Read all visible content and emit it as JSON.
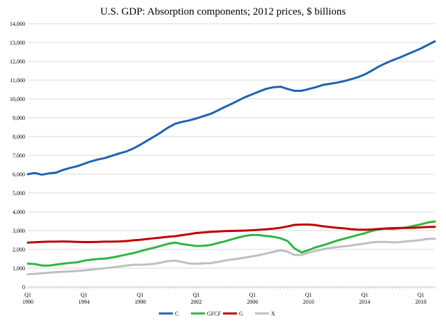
{
  "chart_data": {
    "type": "line",
    "title": "U.S. GDP: Absorption components; 2012 prices, $ billions",
    "xlabel": "",
    "ylabel": "",
    "ylim": [
      0,
      14000
    ],
    "yticks": [
      0,
      1000,
      2000,
      3000,
      4000,
      5000,
      6000,
      7000,
      8000,
      9000,
      10000,
      11000,
      12000,
      13000,
      14000
    ],
    "ytick_labels": [
      "0",
      "1,000",
      "2,000",
      "3,000",
      "4,000",
      "5,000",
      "6,000",
      "7,000",
      "8,000",
      "9,000",
      "10,000",
      "11,000",
      "12,000",
      "13,000",
      "14,000"
    ],
    "xlim": [
      1990,
      2019.0
    ],
    "xticks": [
      {
        "value": 1990,
        "quarter": "Q1",
        "year": "1990"
      },
      {
        "value": 1994,
        "quarter": "Q1",
        "year": "1994"
      },
      {
        "value": 1998,
        "quarter": "Q1",
        "year": "1998"
      },
      {
        "value": 2002,
        "quarter": "Q1",
        "year": "2002"
      },
      {
        "value": 2006,
        "quarter": "Q1",
        "year": "2006"
      },
      {
        "value": 2010,
        "quarter": "Q1",
        "year": "2010"
      },
      {
        "value": 2014,
        "quarter": "Q1",
        "year": "2014"
      },
      {
        "value": 2018,
        "quarter": "Q1",
        "year": "2018"
      }
    ],
    "legend_position": "bottom",
    "series": [
      {
        "name": "C",
        "color": "#1f62b4",
        "points": [
          [
            1990,
            6000
          ],
          [
            1990.5,
            6060
          ],
          [
            1991,
            5970
          ],
          [
            1991.5,
            6040
          ],
          [
            1992,
            6080
          ],
          [
            1992.5,
            6220
          ],
          [
            1993,
            6330
          ],
          [
            1993.5,
            6420
          ],
          [
            1994,
            6550
          ],
          [
            1994.5,
            6680
          ],
          [
            1995,
            6780
          ],
          [
            1995.5,
            6860
          ],
          [
            1996,
            6980
          ],
          [
            1996.5,
            7100
          ],
          [
            1997,
            7200
          ],
          [
            1997.5,
            7360
          ],
          [
            1998,
            7560
          ],
          [
            1998.5,
            7780
          ],
          [
            1999,
            8000
          ],
          [
            1999.5,
            8230
          ],
          [
            2000,
            8480
          ],
          [
            2000.5,
            8680
          ],
          [
            2001,
            8780
          ],
          [
            2001.5,
            8860
          ],
          [
            2002,
            8960
          ],
          [
            2002.5,
            9080
          ],
          [
            2003,
            9200
          ],
          [
            2003.5,
            9370
          ],
          [
            2004,
            9560
          ],
          [
            2004.5,
            9730
          ],
          [
            2005,
            9920
          ],
          [
            2005.5,
            10100
          ],
          [
            2006,
            10250
          ],
          [
            2006.5,
            10400
          ],
          [
            2007,
            10540
          ],
          [
            2007.5,
            10620
          ],
          [
            2008,
            10650
          ],
          [
            2008.5,
            10530
          ],
          [
            2009,
            10430
          ],
          [
            2009.5,
            10430
          ],
          [
            2010,
            10520
          ],
          [
            2010.5,
            10620
          ],
          [
            2011,
            10740
          ],
          [
            2011.5,
            10800
          ],
          [
            2012,
            10860
          ],
          [
            2012.5,
            10940
          ],
          [
            2013,
            11040
          ],
          [
            2013.5,
            11150
          ],
          [
            2014,
            11300
          ],
          [
            2014.5,
            11500
          ],
          [
            2015,
            11720
          ],
          [
            2015.5,
            11900
          ],
          [
            2016,
            12060
          ],
          [
            2016.5,
            12200
          ],
          [
            2017,
            12360
          ],
          [
            2017.5,
            12520
          ],
          [
            2018,
            12680
          ],
          [
            2018.5,
            12870
          ],
          [
            2019,
            13060
          ]
        ]
      },
      {
        "name": "GFCF",
        "color": "#2fb543",
        "points": [
          [
            1990,
            1240
          ],
          [
            1990.5,
            1220
          ],
          [
            1991,
            1140
          ],
          [
            1991.5,
            1140
          ],
          [
            1992,
            1190
          ],
          [
            1992.5,
            1240
          ],
          [
            1993,
            1280
          ],
          [
            1993.5,
            1310
          ],
          [
            1994,
            1400
          ],
          [
            1994.5,
            1450
          ],
          [
            1995,
            1490
          ],
          [
            1995.5,
            1510
          ],
          [
            1996,
            1570
          ],
          [
            1996.5,
            1640
          ],
          [
            1997,
            1720
          ],
          [
            1997.5,
            1800
          ],
          [
            1998,
            1900
          ],
          [
            1998.5,
            2000
          ],
          [
            1999,
            2090
          ],
          [
            1999.5,
            2190
          ],
          [
            2000,
            2300
          ],
          [
            2000.5,
            2360
          ],
          [
            2001,
            2280
          ],
          [
            2001.5,
            2230
          ],
          [
            2002,
            2180
          ],
          [
            2002.5,
            2190
          ],
          [
            2003,
            2230
          ],
          [
            2003.5,
            2330
          ],
          [
            2004,
            2420
          ],
          [
            2004.5,
            2530
          ],
          [
            2005,
            2630
          ],
          [
            2005.5,
            2720
          ],
          [
            2006,
            2770
          ],
          [
            2006.5,
            2760
          ],
          [
            2007,
            2710
          ],
          [
            2007.5,
            2670
          ],
          [
            2008,
            2590
          ],
          [
            2008.5,
            2450
          ],
          [
            2009,
            2050
          ],
          [
            2009.5,
            1840
          ],
          [
            2010,
            1960
          ],
          [
            2010.5,
            2110
          ],
          [
            2011,
            2210
          ],
          [
            2011.5,
            2330
          ],
          [
            2012,
            2460
          ],
          [
            2012.5,
            2560
          ],
          [
            2013,
            2660
          ],
          [
            2013.5,
            2760
          ],
          [
            2014,
            2860
          ],
          [
            2014.5,
            2980
          ],
          [
            2015,
            3060
          ],
          [
            2015.5,
            3100
          ],
          [
            2016,
            3080
          ],
          [
            2016.5,
            3120
          ],
          [
            2017,
            3170
          ],
          [
            2017.5,
            3250
          ],
          [
            2018,
            3330
          ],
          [
            2018.5,
            3430
          ],
          [
            2019,
            3480
          ]
        ]
      },
      {
        "name": "G",
        "color": "#c00000",
        "points": [
          [
            1990,
            2360
          ],
          [
            1990.5,
            2380
          ],
          [
            1991,
            2400
          ],
          [
            1991.5,
            2410
          ],
          [
            1992,
            2410
          ],
          [
            1992.5,
            2420
          ],
          [
            1993,
            2410
          ],
          [
            1993.5,
            2400
          ],
          [
            1994,
            2390
          ],
          [
            1994.5,
            2390
          ],
          [
            1995,
            2400
          ],
          [
            1995.5,
            2410
          ],
          [
            1996,
            2410
          ],
          [
            1996.5,
            2420
          ],
          [
            1997,
            2440
          ],
          [
            1997.5,
            2480
          ],
          [
            1998,
            2510
          ],
          [
            1998.5,
            2550
          ],
          [
            1999,
            2590
          ],
          [
            1999.5,
            2630
          ],
          [
            2000,
            2670
          ],
          [
            2000.5,
            2700
          ],
          [
            2001,
            2760
          ],
          [
            2001.5,
            2810
          ],
          [
            2002,
            2870
          ],
          [
            2002.5,
            2900
          ],
          [
            2003,
            2930
          ],
          [
            2003.5,
            2950
          ],
          [
            2004,
            2970
          ],
          [
            2004.5,
            2980
          ],
          [
            2005,
            2990
          ],
          [
            2005.5,
            3000
          ],
          [
            2006,
            3020
          ],
          [
            2006.5,
            3040
          ],
          [
            2007,
            3070
          ],
          [
            2007.5,
            3100
          ],
          [
            2008,
            3150
          ],
          [
            2008.5,
            3220
          ],
          [
            2009,
            3300
          ],
          [
            2009.5,
            3320
          ],
          [
            2010,
            3320
          ],
          [
            2010.5,
            3290
          ],
          [
            2011,
            3230
          ],
          [
            2011.5,
            3190
          ],
          [
            2012,
            3150
          ],
          [
            2012.5,
            3120
          ],
          [
            2013,
            3080
          ],
          [
            2013.5,
            3050
          ],
          [
            2014,
            3040
          ],
          [
            2014.5,
            3060
          ],
          [
            2015,
            3090
          ],
          [
            2015.5,
            3110
          ],
          [
            2016,
            3130
          ],
          [
            2016.5,
            3140
          ],
          [
            2017,
            3140
          ],
          [
            2017.5,
            3150
          ],
          [
            2018,
            3170
          ],
          [
            2018.5,
            3190
          ],
          [
            2019,
            3200
          ]
        ]
      },
      {
        "name": "X",
        "color": "#bfbfbf",
        "points": [
          [
            1990,
            680
          ],
          [
            1990.5,
            700
          ],
          [
            1991,
            730
          ],
          [
            1991.5,
            760
          ],
          [
            1992,
            790
          ],
          [
            1992.5,
            810
          ],
          [
            1993,
            830
          ],
          [
            1993.5,
            850
          ],
          [
            1994,
            880
          ],
          [
            1994.5,
            920
          ],
          [
            1995,
            960
          ],
          [
            1995.5,
            1000
          ],
          [
            1996,
            1040
          ],
          [
            1996.5,
            1090
          ],
          [
            1997,
            1140
          ],
          [
            1997.5,
            1180
          ],
          [
            1998,
            1180
          ],
          [
            1998.5,
            1200
          ],
          [
            1999,
            1230
          ],
          [
            1999.5,
            1300
          ],
          [
            2000,
            1380
          ],
          [
            2000.5,
            1400
          ],
          [
            2001,
            1330
          ],
          [
            2001.5,
            1250
          ],
          [
            2002,
            1230
          ],
          [
            2002.5,
            1260
          ],
          [
            2003,
            1270
          ],
          [
            2003.5,
            1330
          ],
          [
            2004,
            1400
          ],
          [
            2004.5,
            1460
          ],
          [
            2005,
            1510
          ],
          [
            2005.5,
            1570
          ],
          [
            2006,
            1630
          ],
          [
            2006.5,
            1700
          ],
          [
            2007,
            1780
          ],
          [
            2007.5,
            1870
          ],
          [
            2008,
            1950
          ],
          [
            2008.5,
            1880
          ],
          [
            2009,
            1700
          ],
          [
            2009.5,
            1710
          ],
          [
            2010,
            1820
          ],
          [
            2010.5,
            1920
          ],
          [
            2011,
            2000
          ],
          [
            2011.5,
            2070
          ],
          [
            2012,
            2120
          ],
          [
            2012.5,
            2160
          ],
          [
            2013,
            2200
          ],
          [
            2013.5,
            2260
          ],
          [
            2014,
            2310
          ],
          [
            2014.5,
            2370
          ],
          [
            2015,
            2400
          ],
          [
            2015.5,
            2400
          ],
          [
            2016,
            2370
          ],
          [
            2016.5,
            2390
          ],
          [
            2017,
            2430
          ],
          [
            2017.5,
            2460
          ],
          [
            2018,
            2500
          ],
          [
            2018.5,
            2560
          ],
          [
            2019,
            2560
          ]
        ]
      }
    ]
  }
}
